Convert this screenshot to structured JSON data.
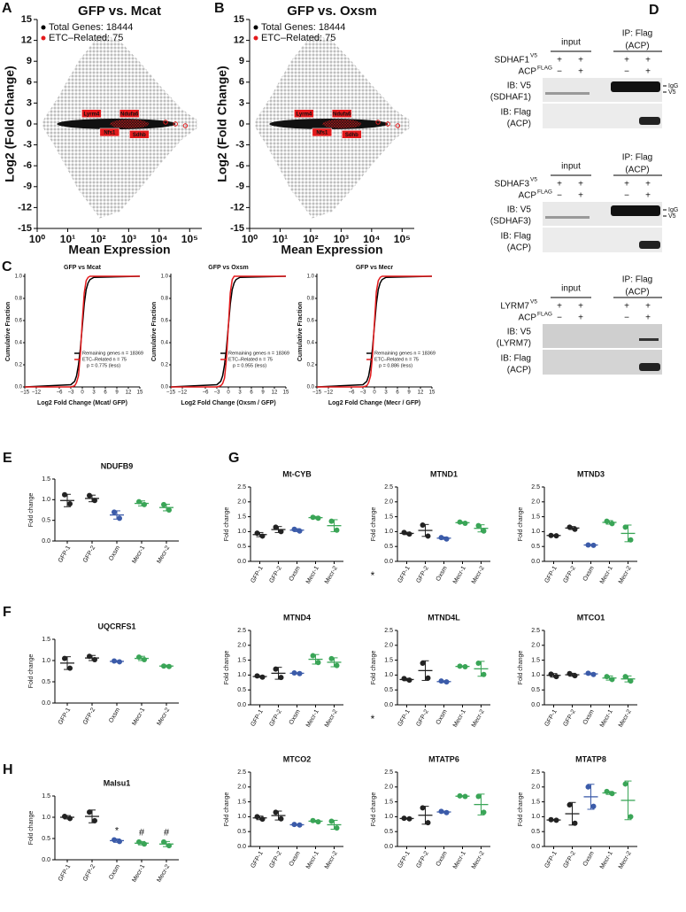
{
  "A": {
    "letter": "A",
    "title": "GFP vs. Mcat",
    "legend": [
      "Total Genes: 18444",
      "ETC–Related: 75"
    ],
    "legend_colors": [
      "#000000",
      "#e41a1c"
    ],
    "genes": [
      "Lyrm4",
      "Ndufa6",
      "Nfs1",
      "Sdhb"
    ],
    "xlabel": "Mean Expression",
    "ylabel": "Log2 (Fold Change)",
    "ylim": [
      -15,
      15
    ],
    "yticks": [
      15,
      12,
      9,
      6,
      3,
      0,
      -3,
      -6,
      -9,
      -12,
      -15
    ],
    "xlim": [
      1,
      250000
    ],
    "log_x": true,
    "xticks": [
      {
        "value": 1,
        "label": "10⁰"
      },
      {
        "value": 10,
        "label": "10¹"
      },
      {
        "value": 100,
        "label": "10²"
      },
      {
        "value": 1000,
        "label": "10³"
      },
      {
        "value": 10000,
        "label": "10⁴"
      },
      {
        "value": 100000,
        "label": "10⁵"
      }
    ]
  },
  "B": {
    "letter": "B",
    "title": "GFP vs. Oxsm",
    "legend": [
      "Total Genes: 18444",
      "ETC–Related: 75"
    ],
    "legend_colors": [
      "#000000",
      "#e41a1c"
    ],
    "genes": [
      "Lyrm4",
      "Ndufa6",
      "Nfs1",
      "Sdhb"
    ],
    "xlabel": "Mean Expression",
    "ylabel": "Log2 (Fold Change)",
    "ylim": [
      -15,
      15
    ],
    "yticks": [
      15,
      12,
      9,
      6,
      3,
      0,
      -3,
      -6,
      -9,
      -12,
      -15
    ],
    "xlim": [
      1,
      250000
    ],
    "log_x": true,
    "xticks": [
      {
        "value": 1,
        "label": "10⁰"
      },
      {
        "value": 10,
        "label": "10¹"
      },
      {
        "value": 100,
        "label": "10²"
      },
      {
        "value": 1000,
        "label": "10³"
      },
      {
        "value": 10000,
        "label": "10⁴"
      },
      {
        "value": 100000,
        "label": "10⁵"
      }
    ]
  },
  "C": {
    "letter": "C",
    "ylabel": "Cumulative Fraction",
    "ylim": [
      0,
      1
    ],
    "yticks": [
      {
        "value": 0,
        "label": "0.0"
      },
      {
        "value": 0.2,
        "label": "0.2"
      },
      {
        "value": 0.4,
        "label": "0.4"
      },
      {
        "value": 0.6,
        "label": "0.6"
      },
      {
        "value": 0.8,
        "label": "0.8"
      },
      {
        "value": 1,
        "label": "1.0"
      }
    ],
    "xlim": [
      -15,
      15
    ],
    "xticks": [
      {
        "value": -15,
        "label": "−15"
      },
      {
        "value": -12,
        "label": "−12"
      },
      {
        "value": -6,
        "label": "−6"
      },
      {
        "value": -3,
        "label": "−3"
      },
      0,
      3,
      6,
      9,
      12,
      15
    ],
    "x": [
      -15,
      -3,
      -2,
      -1.5,
      -1,
      -0.5,
      0,
      0.5,
      1,
      1.5,
      2,
      3,
      15
    ],
    "plots": [
      {
        "title": "GFP vs Mcat",
        "xlabel": "Log2 Fold Change (Mcat/ GFP)",
        "note": "p = 0.775 (less)",
        "series": [
          {
            "name": "Remaining genes n = 18369",
            "color": "#000000",
            "values": [
              0,
              0.02,
              0.05,
              0.1,
              0.2,
              0.35,
              0.55,
              0.75,
              0.88,
              0.94,
              0.97,
              0.99,
              1
            ]
          },
          {
            "name": "ETC–Related n = 75",
            "color": "#e41a1c",
            "values": [
              0,
              0,
              0.01,
              0.04,
              0.1,
              0.3,
              0.6,
              0.85,
              0.96,
              0.99,
              1,
              1,
              1
            ]
          }
        ]
      },
      {
        "title": "GFP vs Oxsm",
        "xlabel": "Log2 Fold Change (Oxsm / GFP)",
        "note": "p = 0.955 (less)",
        "series": [
          {
            "name": "Remaining genes n = 18369",
            "color": "#000000",
            "values": [
              0,
              0.02,
              0.05,
              0.1,
              0.2,
              0.35,
              0.55,
              0.75,
              0.88,
              0.94,
              0.97,
              0.99,
              1
            ]
          },
          {
            "name": "ETC–Related n = 75",
            "color": "#e41a1c",
            "values": [
              0,
              0,
              0.01,
              0.03,
              0.08,
              0.25,
              0.55,
              0.85,
              0.97,
              1,
              1,
              1,
              1
            ]
          }
        ]
      },
      {
        "title": "GFP vs Mecr",
        "xlabel": "Log2 Fold Change (Mecr / GFP)",
        "note": "p = 0.886 (less)",
        "series": [
          {
            "name": "Remaining genes n = 18369",
            "color": "#000000",
            "values": [
              0,
              0.02,
              0.05,
              0.1,
              0.2,
              0.35,
              0.55,
              0.75,
              0.88,
              0.94,
              0.97,
              0.99,
              1
            ]
          },
          {
            "name": "ETC–Related n = 75",
            "color": "#e41a1c",
            "values": [
              0,
              0,
              0.01,
              0.04,
              0.1,
              0.28,
              0.58,
              0.86,
              0.96,
              0.99,
              1,
              1,
              1
            ]
          }
        ]
      }
    ]
  },
  "D": {
    "letter": "D",
    "blots": [
      {
        "input": "input",
        "ip": "IP: Flag",
        "ip_target": "(ACP)",
        "bait": "SDHAF1",
        "bait_tag": "V5",
        "prey": "ACP",
        "prey_tag": "FLAG",
        "row1": [
          "+",
          "+",
          "+",
          "+"
        ],
        "row2": [
          "−",
          "+",
          "−",
          "+"
        ],
        "ib1": "IB: V5",
        "ib1_target": "(SDHAF1)",
        "ib2": "IB: Flag",
        "ib2_target": "(ACP)",
        "markers": [
          "IgG",
          "V5"
        ]
      },
      {
        "input": "input",
        "ip": "IP: Flag",
        "ip_target": "(ACP)",
        "bait": "SDHAF3",
        "bait_tag": "V5",
        "prey": "ACP",
        "prey_tag": "FLAG",
        "row1": [
          "+",
          "+",
          "+",
          "+"
        ],
        "row2": [
          "−",
          "+",
          "−",
          "+"
        ],
        "ib1": "IB: V5",
        "ib1_target": "(SDHAF3)",
        "ib2": "IB: Flag",
        "ib2_target": "(ACP)",
        "markers": [
          "IgG",
          "V5"
        ]
      },
      {
        "input": "input",
        "ip": "IP: Flag",
        "ip_target": "(ACP)",
        "bait": "LYRM7",
        "bait_tag": "V5",
        "prey": "ACP",
        "prey_tag": "FLAG",
        "row1": [
          "+",
          "+",
          "+",
          "+"
        ],
        "row2": [
          "−",
          "+",
          "−",
          "+"
        ],
        "ib1": "IB: V5",
        "ib1_target": "(LYRM7)",
        "ib2": "IB: Flag",
        "ib2_target": "(ACP)",
        "markers": []
      }
    ]
  },
  "dot_categories": [
    "GFP-1",
    "GFP-2",
    "Oxsm",
    "Mecr-1",
    "Mecr-2"
  ],
  "dot_colors": [
    "#222222",
    "#222222",
    "#3b5ba9",
    "#3aa557",
    "#3aa557"
  ],
  "fold_ylabel": "Fold change",
  "axes": {
    "fold_15": {
      "ylim": [
        0,
        1.5
      ],
      "yticks": [
        {
          "value": 0,
          "label": "0.0"
        },
        {
          "value": 0.5,
          "label": "0.5"
        },
        {
          "value": 1,
          "label": "1.0"
        },
        {
          "value": 1.5,
          "label": "1.5"
        }
      ]
    },
    "fold_25": {
      "ylim": [
        0,
        2.5
      ],
      "yticks": [
        {
          "value": 0,
          "label": "0.0"
        },
        {
          "value": 0.5,
          "label": "0.5"
        },
        {
          "value": 1,
          "label": "1.0"
        },
        {
          "value": 1.5,
          "label": "1.5"
        },
        {
          "value": 2,
          "label": "2.0"
        },
        {
          "value": 2.5,
          "label": "2.5"
        }
      ]
    }
  },
  "E": {
    "letter": "E",
    "title": "NDUFB9",
    "axis": "fold_15",
    "points": [
      [
        1.12,
        0.9
      ],
      [
        1.1,
        0.98
      ],
      [
        0.7,
        0.55
      ],
      [
        0.95,
        0.88
      ],
      [
        0.88,
        0.75
      ]
    ],
    "means": [
      0.98,
      1.03,
      0.63,
      0.91,
      0.81
    ],
    "sd": [
      0.15,
      0.08,
      0.1,
      0.06,
      0.08
    ]
  },
  "F": {
    "letter": "F",
    "title": "UQCRFS1",
    "axis": "fold_15",
    "points": [
      [
        1.05,
        0.82
      ],
      [
        1.1,
        1.02
      ],
      [
        0.99,
        0.97
      ],
      [
        1.08,
        1.02
      ],
      [
        0.87,
        0.86
      ]
    ],
    "means": [
      0.94,
      1.06,
      0.98,
      1.05,
      0.87
    ],
    "sd": [
      0.15,
      0.06,
      0.02,
      0.05,
      0.02
    ]
  },
  "H": {
    "letter": "H",
    "title": "Malsu1",
    "axis": "fold_15",
    "points": [
      [
        1.02,
        0.97
      ],
      [
        1.12,
        0.92
      ],
      [
        0.47,
        0.43
      ],
      [
        0.42,
        0.37
      ],
      [
        0.42,
        0.33
      ]
    ],
    "means": [
      1.0,
      1.02,
      0.45,
      0.39,
      0.37
    ],
    "sd": [
      0.04,
      0.15,
      0.04,
      0.04,
      0.06
    ],
    "annotations": [
      null,
      null,
      "*",
      "#",
      "#"
    ]
  },
  "G": {
    "letter": "G",
    "plots": [
      {
        "title": "Mt-CYB",
        "axis": "fold_25",
        "points": [
          [
            0.95,
            0.85
          ],
          [
            1.15,
            1.0
          ],
          [
            1.08,
            1.02
          ],
          [
            1.48,
            1.45
          ],
          [
            1.35,
            1.05
          ]
        ],
        "means": [
          0.9,
          1.07,
          1.05,
          1.47,
          1.2
        ],
        "sd": [
          0.07,
          0.1,
          0.05,
          0.04,
          0.2
        ]
      },
      {
        "title": "MTND1",
        "axis": "fold_25",
        "points": [
          [
            0.97,
            0.92
          ],
          [
            1.22,
            0.85
          ],
          [
            0.8,
            0.75
          ],
          [
            1.32,
            1.28
          ],
          [
            1.2,
            1.02
          ]
        ],
        "means": [
          0.94,
          1.04,
          0.78,
          1.3,
          1.11
        ],
        "sd": [
          0.04,
          0.2,
          0.04,
          0.03,
          0.12
        ],
        "note": "*"
      },
      {
        "title": "MTND3",
        "axis": "fold_25",
        "points": [
          [
            0.87,
            0.86
          ],
          [
            1.15,
            1.08
          ],
          [
            0.55,
            0.54
          ],
          [
            1.35,
            1.27
          ],
          [
            1.15,
            0.72
          ]
        ],
        "means": [
          0.87,
          1.12,
          0.55,
          1.31,
          0.94
        ],
        "sd": [
          0.02,
          0.05,
          0.02,
          0.06,
          0.28
        ]
      },
      {
        "title": "MTND4",
        "axis": "fold_25",
        "points": [
          [
            0.97,
            0.93
          ],
          [
            1.2,
            0.92
          ],
          [
            1.07,
            1.05
          ],
          [
            1.65,
            1.42
          ],
          [
            1.55,
            1.32
          ]
        ],
        "means": [
          0.95,
          1.06,
          1.06,
          1.53,
          1.43
        ],
        "sd": [
          0.03,
          0.2,
          0.02,
          0.16,
          0.15
        ]
      },
      {
        "title": "MTND4L",
        "axis": "fold_25",
        "points": [
          [
            0.88,
            0.83
          ],
          [
            1.4,
            0.9
          ],
          [
            0.8,
            0.77
          ],
          [
            1.3,
            1.28
          ],
          [
            1.4,
            1.02
          ]
        ],
        "means": [
          0.85,
          1.15,
          0.78,
          1.29,
          1.21
        ],
        "sd": [
          0.04,
          0.33,
          0.03,
          0.02,
          0.25
        ],
        "note": "*"
      },
      {
        "title": "MTCO1",
        "axis": "fold_25",
        "points": [
          [
            1.03,
            0.95
          ],
          [
            1.05,
            0.98
          ],
          [
            1.06,
            1.02
          ],
          [
            0.95,
            0.85
          ],
          [
            0.95,
            0.8
          ]
        ],
        "means": [
          0.99,
          1.01,
          1.04,
          0.9,
          0.87
        ],
        "sd": [
          0.06,
          0.05,
          0.03,
          0.07,
          0.1
        ]
      },
      {
        "title": "MTCO2",
        "axis": "fold_25",
        "points": [
          [
            1.0,
            0.92
          ],
          [
            1.15,
            0.93
          ],
          [
            0.74,
            0.72
          ],
          [
            0.87,
            0.83
          ],
          [
            0.85,
            0.62
          ]
        ],
        "means": [
          0.96,
          1.04,
          0.73,
          0.85,
          0.73
        ],
        "sd": [
          0.06,
          0.15,
          0.02,
          0.03,
          0.15
        ]
      },
      {
        "title": "MTATP6",
        "axis": "fold_25",
        "points": [
          [
            0.95,
            0.93
          ],
          [
            1.3,
            0.8
          ],
          [
            1.18,
            1.14
          ],
          [
            1.7,
            1.68
          ],
          [
            1.68,
            1.15
          ]
        ],
        "means": [
          0.94,
          1.05,
          1.16,
          1.69,
          1.41
        ],
        "sd": [
          0.02,
          0.3,
          0.03,
          0.02,
          0.35
        ]
      },
      {
        "title": "MTATP8",
        "axis": "fold_25",
        "points": [
          [
            0.9,
            0.88
          ],
          [
            1.4,
            0.78
          ],
          [
            2.0,
            1.35
          ],
          [
            1.85,
            1.78
          ],
          [
            2.1,
            1.0
          ]
        ],
        "means": [
          0.89,
          1.1,
          1.67,
          1.8,
          1.55
        ],
        "sd": [
          0.02,
          0.38,
          0.42,
          0.05,
          0.65
        ]
      }
    ]
  }
}
